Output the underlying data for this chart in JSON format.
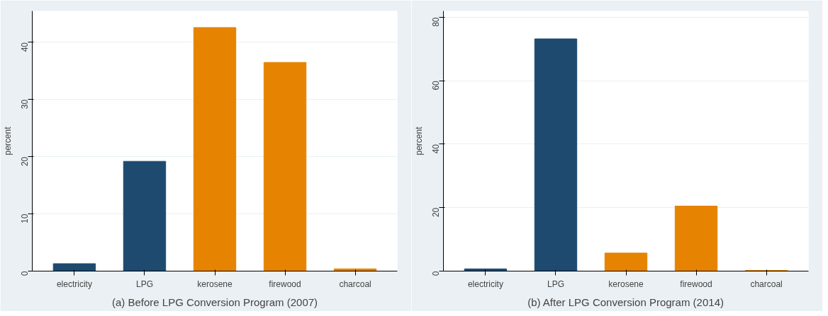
{
  "chart_data": [
    {
      "type": "bar",
      "title": "(a) Before LPG Conversion Program (2007)",
      "ylabel": "percent",
      "categories": [
        "electricity",
        "LPG",
        "kerosene",
        "firewood",
        "charcoal"
      ],
      "values": [
        1.3,
        19.2,
        42.6,
        36.5,
        0.4
      ],
      "colors": [
        "#1f4a70",
        "#1f4a70",
        "#e68300",
        "#e68300",
        "#e68300"
      ],
      "ylim": [
        0,
        45.5
      ],
      "yticks": [
        0,
        10,
        20,
        30,
        40
      ],
      "grid": "y"
    },
    {
      "type": "bar",
      "title": "(b) After LPG Conversion Program (2014)",
      "ylabel": "percent",
      "categories": [
        "electricity",
        "LPG",
        "kerosene",
        "firewood",
        "charcoal"
      ],
      "values": [
        0.7,
        73.2,
        5.7,
        20.5,
        0.2
      ],
      "colors": [
        "#1f4a70",
        "#1f4a70",
        "#e68300",
        "#e68300",
        "#e68300"
      ],
      "ylim": [
        0,
        82
      ],
      "yticks": [
        0,
        20,
        40,
        60,
        80
      ],
      "grid": "y"
    }
  ]
}
